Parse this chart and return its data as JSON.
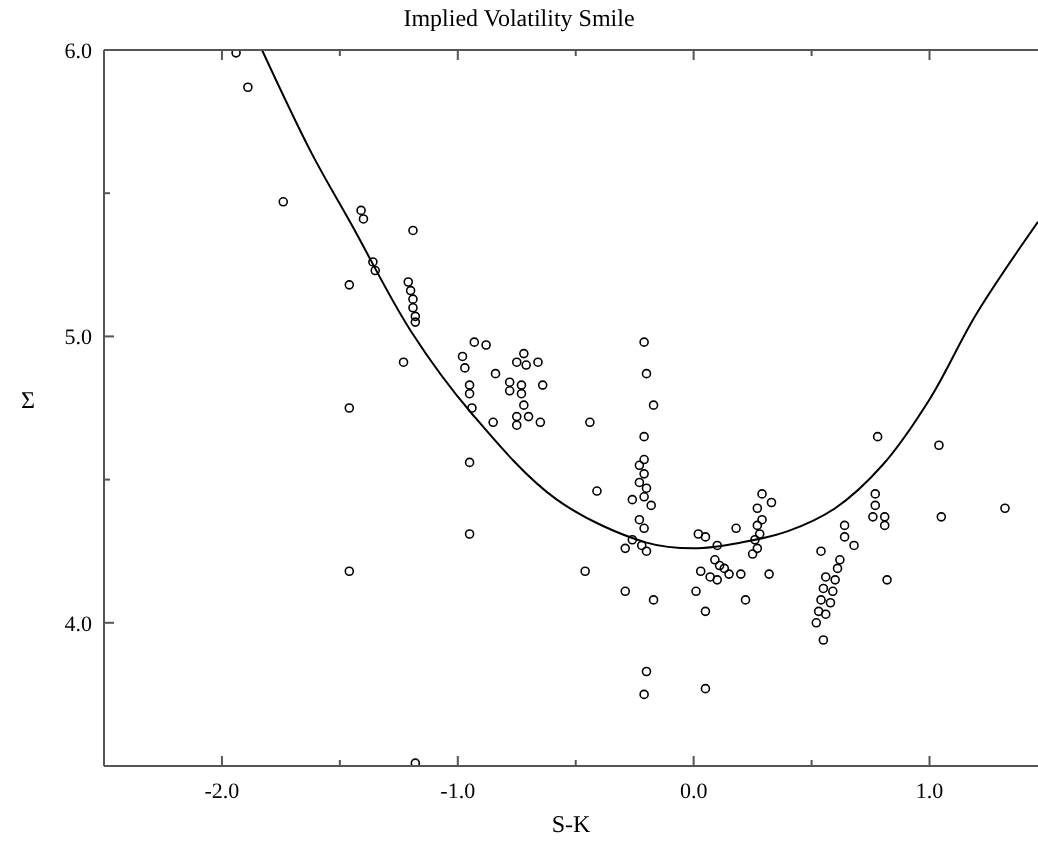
{
  "chart_data": {
    "type": "scatter",
    "title": "Implied Volatility Smile",
    "xlabel": "S-K",
    "ylabel": "Σ",
    "xlim": [
      -2.5,
      1.46
    ],
    "ylim": [
      3.5,
      6.0
    ],
    "xticks": [
      {
        "value": -2,
        "label": "-2.0"
      },
      {
        "value": -1.5,
        "label": null
      },
      {
        "value": -1,
        "label": "-1.0"
      },
      {
        "value": -0.5,
        "label": null
      },
      {
        "value": 0,
        "label": "0.0"
      },
      {
        "value": 0.5,
        "label": null
      },
      {
        "value": 1,
        "label": "1.0"
      }
    ],
    "yticks": [
      {
        "value": 4,
        "label": "4.0"
      },
      {
        "value": 4.5,
        "label": null
      },
      {
        "value": 5,
        "label": "5.0"
      },
      {
        "value": 5.5,
        "label": null
      },
      {
        "value": 6,
        "label": "6.0"
      }
    ],
    "marker": "circle",
    "series": [
      {
        "color": "#000000",
        "x": [
          -1.94,
          -1.89,
          -1.74,
          -1.41,
          -1.4,
          -1.19,
          -1.36,
          -1.35,
          -1.46,
          -1.21,
          -1.2,
          -1.19,
          -1.19,
          -1.18,
          -1.18,
          -1.23,
          -0.98,
          -0.97,
          -0.93,
          -0.88,
          -0.75,
          -0.72,
          -0.71,
          -0.66,
          -0.95,
          -0.95,
          -0.84,
          -0.78,
          -0.73,
          -0.78,
          -0.73,
          -0.64,
          -0.94,
          -0.85,
          -0.75,
          -0.7,
          -0.65,
          -0.75,
          -0.72,
          -1.46,
          -0.95,
          -0.95,
          -1.46,
          -1.18,
          -0.21,
          -0.2,
          -0.17,
          -0.44,
          -0.21,
          -0.21,
          -0.23,
          -0.21,
          -0.23,
          -0.2,
          -0.21,
          -0.26,
          -0.18,
          -0.23,
          -0.21,
          -0.26,
          -0.22,
          -0.29,
          -0.2,
          -0.29,
          -0.17,
          -0.2,
          -0.21,
          -0.41,
          -0.46,
          0.02,
          0.05,
          0.1,
          0.09,
          0.11,
          0.13,
          0.15,
          0.1,
          0.07,
          0.03,
          0.01,
          0.05,
          0.05,
          0.2,
          0.22,
          0.18,
          0.26,
          0.28,
          0.25,
          0.27,
          0.32,
          0.27,
          0.29,
          0.27,
          0.29,
          0.33,
          0.54,
          0.56,
          0.6,
          0.59,
          0.55,
          0.58,
          0.54,
          0.56,
          0.53,
          0.52,
          0.55,
          0.61,
          0.62,
          0.64,
          0.64,
          0.68,
          0.78,
          0.77,
          0.77,
          0.76,
          0.81,
          0.81,
          0.82,
          1.04,
          1.05,
          1.32
        ],
        "values": [
          5.99,
          5.87,
          5.47,
          5.44,
          5.41,
          5.37,
          5.26,
          5.23,
          5.18,
          5.19,
          5.16,
          5.13,
          5.1,
          5.07,
          5.05,
          4.91,
          4.93,
          4.89,
          4.98,
          4.97,
          4.91,
          4.94,
          4.9,
          4.91,
          4.83,
          4.8,
          4.87,
          4.84,
          4.83,
          4.81,
          4.8,
          4.83,
          4.75,
          4.7,
          4.72,
          4.72,
          4.7,
          4.69,
          4.76,
          4.75,
          4.56,
          4.31,
          4.18,
          3.51,
          4.98,
          4.87,
          4.76,
          4.7,
          4.65,
          4.57,
          4.55,
          4.52,
          4.49,
          4.47,
          4.44,
          4.43,
          4.41,
          4.36,
          4.33,
          4.29,
          4.27,
          4.26,
          4.25,
          4.11,
          4.08,
          3.83,
          3.75,
          4.46,
          4.18,
          4.31,
          4.3,
          4.27,
          4.22,
          4.2,
          4.19,
          4.17,
          4.15,
          4.16,
          4.18,
          4.11,
          4.04,
          3.77,
          4.17,
          4.08,
          4.33,
          4.29,
          4.31,
          4.24,
          4.26,
          4.17,
          4.34,
          4.36,
          4.4,
          4.45,
          4.42,
          4.25,
          4.16,
          4.15,
          4.11,
          4.12,
          4.07,
          4.08,
          4.03,
          4.04,
          4.0,
          3.94,
          4.19,
          4.22,
          4.34,
          4.3,
          4.27,
          4.65,
          4.45,
          4.41,
          4.37,
          4.37,
          4.34,
          4.15,
          4.62,
          4.37,
          4.4
        ]
      },
      {
        "type": "line",
        "color": "#000000",
        "marker": "none",
        "x": [
          -1.83,
          -1.62,
          -1.45,
          -1.2,
          -0.94,
          -0.58,
          -0.2,
          0.0,
          0.2,
          0.4,
          0.6,
          0.8,
          1.0,
          1.2,
          1.46
        ],
        "values": [
          6.0,
          5.64,
          5.39,
          5.02,
          4.73,
          4.43,
          4.28,
          4.26,
          4.28,
          4.32,
          4.4,
          4.55,
          4.78,
          5.08,
          5.4
        ]
      }
    ]
  }
}
